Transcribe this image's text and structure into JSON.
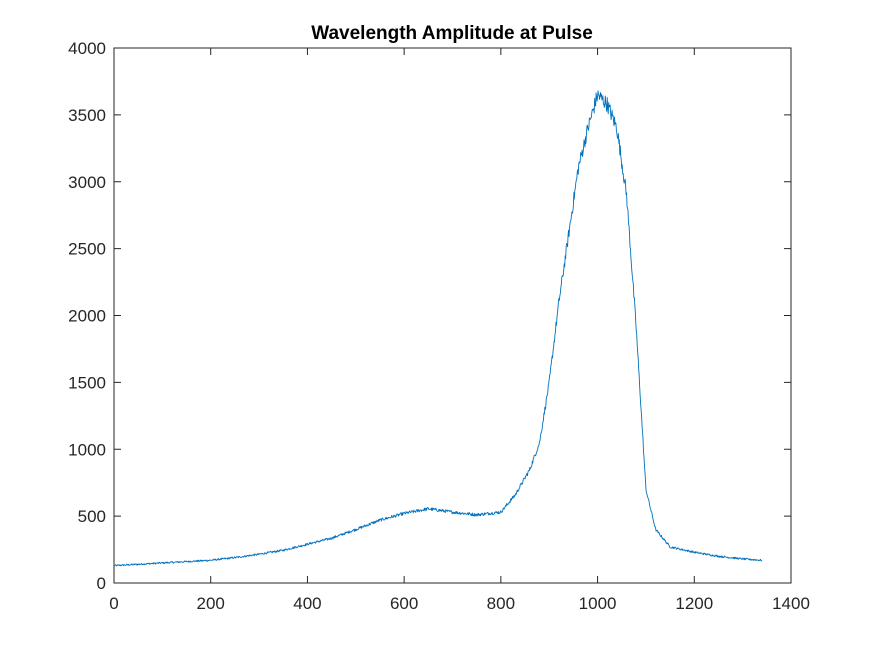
{
  "chart_data": {
    "type": "line",
    "title": "Wavelength Amplitude at Pulse",
    "xlabel": "",
    "ylabel": "",
    "xlim": [
      0,
      1400
    ],
    "ylim": [
      0,
      4000
    ],
    "xticks": [
      0,
      200,
      400,
      600,
      800,
      1000,
      1200,
      1400
    ],
    "yticks": [
      0,
      500,
      1000,
      1500,
      2000,
      2500,
      3000,
      3500,
      4000
    ],
    "grid": false,
    "legend": "none",
    "series_color": "#0072BD",
    "series": [
      {
        "x": [
          0,
          50,
          100,
          150,
          200,
          250,
          300,
          350,
          400,
          450,
          500,
          550,
          600,
          650,
          700,
          750,
          800,
          830,
          860,
          880,
          900,
          920,
          940,
          960,
          980,
          1000,
          1020,
          1040,
          1060,
          1080,
          1100,
          1120,
          1150,
          1200,
          1250,
          1300,
          1340
        ],
        "y": [
          130,
          140,
          150,
          160,
          170,
          190,
          215,
          245,
          290,
          335,
          400,
          470,
          520,
          555,
          530,
          510,
          530,
          660,
          850,
          1050,
          1500,
          2100,
          2600,
          3100,
          3400,
          3650,
          3580,
          3400,
          2900,
          1900,
          700,
          400,
          270,
          230,
          200,
          180,
          170
        ]
      }
    ]
  }
}
